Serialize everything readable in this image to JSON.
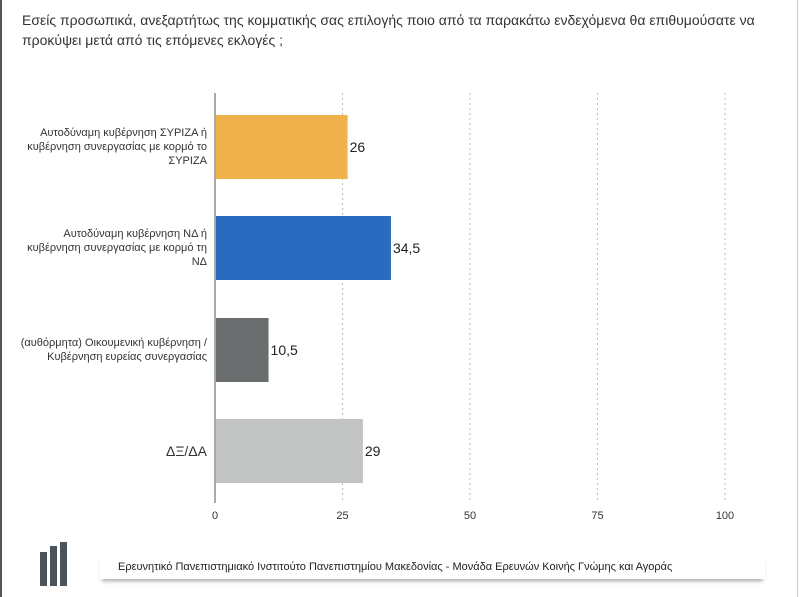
{
  "title": "Εσείς προσωπικά, ανεξαρτήτως της κομματικής σας επιλογής ποιο από τα παρακάτω ενδεχόμενα θα επιθυμούσατε να προκύψει μετά από τις επόμενες εκλογές ;",
  "chart_data": {
    "type": "bar",
    "orientation": "horizontal",
    "categories": [
      "Αυτοδύναμη κυβέρνηση ΣΥΡΙΖΑ ή κυβέρνηση συνεργασίας με κορμό το ΣΥΡΙΖΑ",
      "Αυτοδύναμη κυβέρνηση ΝΔ ή κυβέρνηση συνεργασίας με κορμό τη ΝΔ",
      "(αυθόρμητα) Οικουμενική κυβέρνηση / Κυβέρνηση ευρείας συνεργασίας",
      "ΔΞ/ΔΑ"
    ],
    "values": [
      26,
      34.5,
      10.5,
      29
    ],
    "value_labels": [
      "26",
      "34,5",
      "10,5",
      "29"
    ],
    "colors": [
      "#f0b34c",
      "#2a6bbf",
      "#6b6e6e",
      "#c2c4c4"
    ],
    "xlim": [
      0,
      100
    ],
    "xticks": [
      "0",
      "25",
      "50",
      "75",
      "100"
    ],
    "grid": "vertical dashed",
    "title": "",
    "xlabel": "",
    "ylabel": ""
  },
  "footer": {
    "text": "Ερευνητικό Πανεπιστημιακό Ινστιτούτο Πανεπιστημίου Μακεδονίας - Μονάδα Ερευνών Κοινής Γνώμης και Αγοράς"
  }
}
